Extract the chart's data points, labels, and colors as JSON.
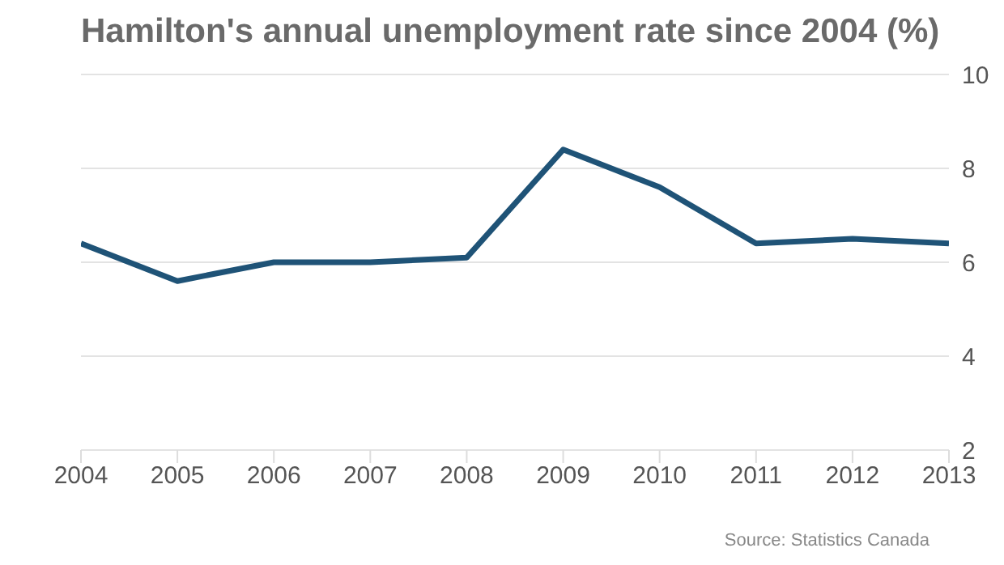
{
  "chart_data": {
    "type": "line",
    "title": "Hamilton's annual unemployment rate since 2004 (%)",
    "x": [
      2004,
      2005,
      2006,
      2007,
      2008,
      2009,
      2010,
      2011,
      2012,
      2013
    ],
    "series": [
      {
        "color": "#1f5377",
        "values": [
          6.4,
          5.6,
          6.0,
          6.0,
          6.1,
          8.4,
          7.6,
          6.4,
          6.5,
          6.4
        ]
      }
    ],
    "xlim": [
      2004,
      2013
    ],
    "xticks": [
      2004,
      2005,
      2006,
      2007,
      2008,
      2009,
      2010,
      2011,
      2012,
      2013
    ],
    "ylim": [
      2,
      10
    ],
    "yticks": [
      2,
      4,
      6,
      8,
      10
    ],
    "grid": "y",
    "marker": "none",
    "line_style": "solid",
    "annotations": [
      "Source: Statistics Canada"
    ]
  }
}
